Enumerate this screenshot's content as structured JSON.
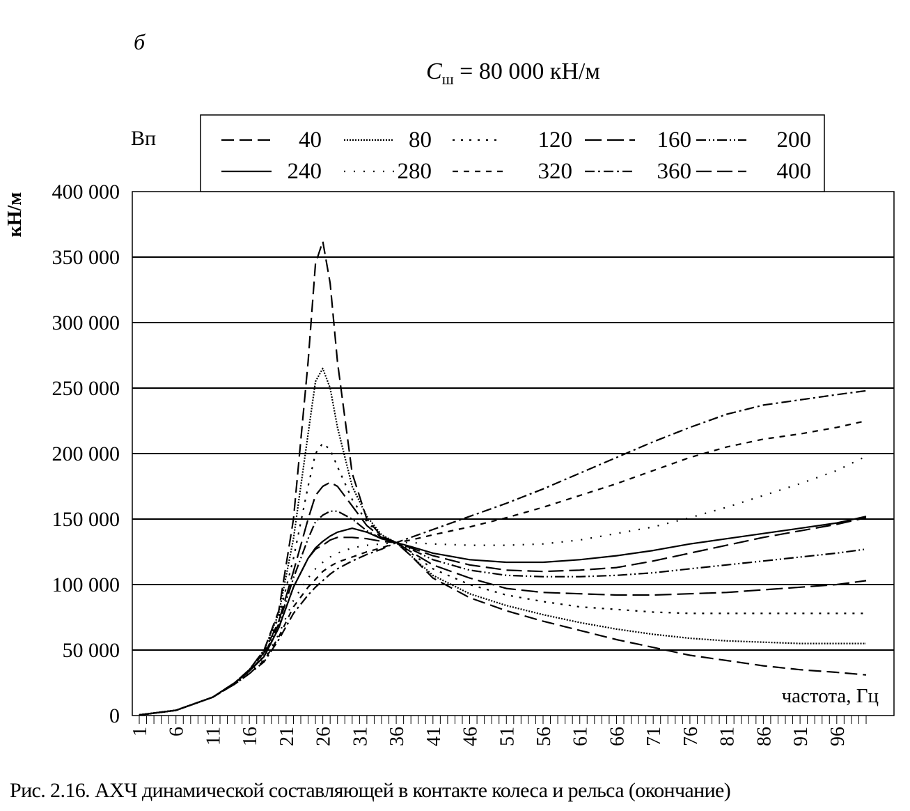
{
  "panel_label": "б",
  "title": {
    "symbol": "C",
    "subscript": "ш",
    "rest": " = 80 000 кН/м"
  },
  "caption": "Рис. 2.16. АХЧ динамической составляющей в контакте колеса и рельса (окончание)",
  "chart_data": {
    "type": "line",
    "title": "",
    "xlabel": "частота, Гц",
    "ylabel": "кН/м",
    "legend_title": "Вп",
    "legend_placement": "top",
    "grid": "horizontal",
    "xlim": [
      1,
      100
    ],
    "ylim": [
      0,
      400000
    ],
    "x_ticks": [
      "1",
      "6",
      "11",
      "16",
      "21",
      "26",
      "31",
      "36",
      "41",
      "46",
      "51",
      "56",
      "61",
      "66",
      "71",
      "76",
      "81",
      "86",
      "91",
      "96"
    ],
    "y_ticks": [
      "0",
      "50 000",
      "100 000",
      "150 000",
      "200 000",
      "250 000",
      "300 000",
      "350 000",
      "400 000"
    ],
    "x": [
      1,
      6,
      11,
      14,
      16,
      18,
      20,
      22,
      24,
      25,
      26,
      27,
      28,
      30,
      32,
      34,
      36,
      38,
      41,
      46,
      51,
      56,
      61,
      66,
      71,
      76,
      81,
      86,
      91,
      96,
      100
    ],
    "series": [
      {
        "name": "40",
        "dash": "18,8",
        "values": [
          500,
          4000,
          14000,
          25000,
          35000,
          50000,
          80000,
          150000,
          270000,
          345000,
          362000,
          330000,
          270000,
          185000,
          150000,
          137000,
          132000,
          122000,
          105000,
          90000,
          80000,
          72000,
          65000,
          58000,
          52000,
          46000,
          42000,
          38000,
          35000,
          33000,
          31000
        ]
      },
      {
        "name": "80",
        "dash": "2,2",
        "values": [
          500,
          4000,
          14000,
          25000,
          35000,
          50000,
          78000,
          135000,
          215000,
          255000,
          265000,
          250000,
          220000,
          175000,
          152000,
          138000,
          132000,
          122000,
          107000,
          93000,
          84000,
          77000,
          71000,
          66000,
          62000,
          59000,
          57000,
          56000,
          55000,
          55000,
          55000
        ]
      },
      {
        "name": "120",
        "dash": "3,9",
        "values": [
          500,
          4000,
          14000,
          25000,
          35000,
          50000,
          75000,
          120000,
          175000,
          200000,
          208000,
          203000,
          190000,
          165000,
          148000,
          137000,
          132000,
          124000,
          112000,
          100000,
          92000,
          87000,
          83000,
          81000,
          79000,
          78000,
          78000,
          78000,
          78000,
          78000,
          78000
        ]
      },
      {
        "name": "160",
        "dash": "24,8",
        "values": [
          500,
          4000,
          14000,
          25000,
          35000,
          48000,
          72000,
          110000,
          150000,
          168000,
          175000,
          178000,
          175000,
          160000,
          145000,
          136000,
          132000,
          125000,
          115000,
          105000,
          97000,
          94000,
          93000,
          92000,
          92000,
          93000,
          94000,
          96000,
          98000,
          100000,
          103000
        ]
      },
      {
        "name": "200",
        "dash": "14,4,2,4,2,4",
        "values": [
          500,
          4000,
          14000,
          25000,
          34000,
          46000,
          70000,
          105000,
          135000,
          148000,
          153000,
          156000,
          156000,
          150000,
          141000,
          135000,
          132000,
          127000,
          119000,
          111000,
          107000,
          106000,
          106000,
          107000,
          109000,
          112000,
          115000,
          118000,
          121000,
          124000,
          127000
        ]
      },
      {
        "name": "240",
        "dash": "",
        "values": [
          500,
          4000,
          14000,
          25000,
          34000,
          45000,
          67000,
          98000,
          120000,
          128000,
          133000,
          137000,
          140000,
          143000,
          140000,
          135000,
          132000,
          129000,
          124000,
          119000,
          117000,
          117000,
          119000,
          122000,
          126000,
          131000,
          135000,
          139000,
          143000,
          147000,
          152000
        ]
      },
      {
        "name": "280",
        "dash": "2,12",
        "values": [
          500,
          4000,
          14000,
          24000,
          33000,
          43000,
          62000,
          88000,
          105000,
          112000,
          117000,
          121000,
          124000,
          128000,
          130000,
          131000,
          132000,
          132000,
          131000,
          130000,
          130000,
          131000,
          134000,
          139000,
          144000,
          151000,
          159000,
          168000,
          177000,
          187000,
          198000
        ]
      },
      {
        "name": "320",
        "dash": "8,8",
        "values": [
          500,
          4000,
          14000,
          24000,
          32000,
          42000,
          60000,
          83000,
          98000,
          104000,
          110000,
          114000,
          117000,
          121000,
          125000,
          128000,
          132000,
          134000,
          138000,
          144000,
          151000,
          159000,
          168000,
          177000,
          187000,
          197000,
          205000,
          211000,
          215000,
          220000,
          225000
        ]
      },
      {
        "name": "360",
        "dash": "14,5,3,5",
        "values": [
          500,
          4000,
          14000,
          24000,
          32000,
          41000,
          58000,
          78000,
          92000,
          98000,
          103000,
          108000,
          112000,
          118000,
          123000,
          127000,
          132000,
          136000,
          142000,
          152000,
          162000,
          173000,
          185000,
          197000,
          209000,
          220000,
          230000,
          237000,
          241000,
          245000,
          248000
        ]
      },
      {
        "name": "400",
        "dash": "22,8",
        "values": [
          500,
          4000,
          14000,
          25000,
          34000,
          45000,
          67000,
          98000,
          120000,
          127000,
          130000,
          134000,
          136000,
          136000,
          135000,
          133000,
          132000,
          128000,
          122000,
          115000,
          111000,
          110000,
          111000,
          113000,
          118000,
          124000,
          130000,
          136000,
          141000,
          146000,
          151000
        ]
      }
    ]
  }
}
